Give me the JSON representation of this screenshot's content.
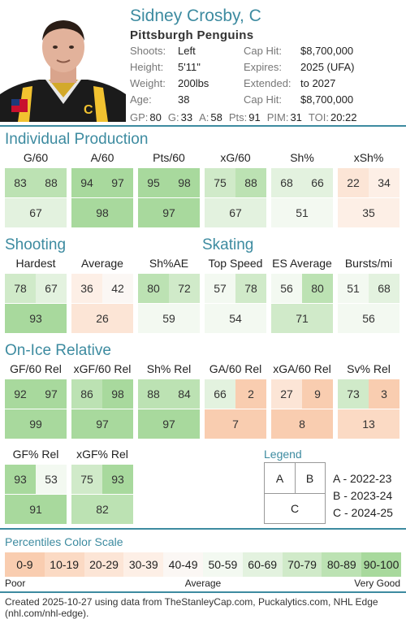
{
  "player": {
    "name": "Sidney Crosby, C",
    "team": "Pittsburgh Penguins"
  },
  "info_left": [
    {
      "label": "Shoots:",
      "value": "Left"
    },
    {
      "label": "Height:",
      "value": "5'11\""
    },
    {
      "label": "Weight:",
      "value": "200lbs"
    },
    {
      "label": "Age:",
      "value": "38"
    }
  ],
  "info_right": [
    {
      "label": "Cap Hit:",
      "value": "$8,700,000"
    },
    {
      "label": "Expires:",
      "value": "2025 (UFA)"
    },
    {
      "label": "Extended:",
      "value": "to 2027"
    },
    {
      "label": "Cap Hit:",
      "value": "$8,700,000"
    }
  ],
  "stat_line": [
    {
      "label": "GP:",
      "value": "80"
    },
    {
      "label": "G:",
      "value": "33"
    },
    {
      "label": "A:",
      "value": "58"
    },
    {
      "label": "Pts:",
      "value": "91"
    },
    {
      "label": "PIM:",
      "value": "31"
    },
    {
      "label": "TOI:",
      "value": "20:22"
    }
  ],
  "sections": {
    "individual": {
      "title": "Individual Production",
      "metrics": [
        {
          "label": "G/60",
          "a": 83,
          "b": 88,
          "c": 67
        },
        {
          "label": "A/60",
          "a": 94,
          "b": 97,
          "c": 98
        },
        {
          "label": "Pts/60",
          "a": 95,
          "b": 98,
          "c": 97
        },
        {
          "label": "xG/60",
          "a": 75,
          "b": 88,
          "c": 67
        },
        {
          "label": "Sh%",
          "a": 68,
          "b": 66,
          "c": 51
        },
        {
          "label": "xSh%",
          "a": 22,
          "b": 34,
          "c": 35
        }
      ]
    },
    "shooting": {
      "title": "Shooting",
      "metrics": [
        {
          "label": "Hardest",
          "a": 78,
          "b": 67,
          "c": 93
        },
        {
          "label": "Average",
          "a": 36,
          "b": 42,
          "c": 26
        },
        {
          "label": "Sh%AE",
          "a": 80,
          "b": 72,
          "c": 59
        }
      ]
    },
    "skating": {
      "title": "Skating",
      "metrics": [
        {
          "label": "Top Speed",
          "a": 57,
          "b": 78,
          "c": 54
        },
        {
          "label": "ES Average",
          "a": 56,
          "b": 80,
          "c": 71
        },
        {
          "label": "Bursts/mi",
          "a": 51,
          "b": 68,
          "c": 56
        }
      ]
    },
    "onice": {
      "title": "On-Ice Relative",
      "metrics": [
        {
          "label": "GF/60 Rel",
          "a": 92,
          "b": 97,
          "c": 99
        },
        {
          "label": "xGF/60 Rel",
          "a": 86,
          "b": 98,
          "c": 97
        },
        {
          "label": "Sh% Rel",
          "a": 88,
          "b": 84,
          "c": 97
        },
        {
          "label": "GA/60 Rel",
          "a": 66,
          "b": 2,
          "c": 7
        },
        {
          "label": "xGA/60 Rel",
          "a": 27,
          "b": 9,
          "c": 8
        },
        {
          "label": "Sv% Rel",
          "a": 73,
          "b": 3,
          "c": 13
        },
        {
          "label": "GF% Rel",
          "a": 93,
          "b": 53,
          "c": 91
        },
        {
          "label": "xGF% Rel",
          "a": 75,
          "b": 93,
          "c": 82
        }
      ]
    }
  },
  "legend": {
    "title": "Legend",
    "a": "A",
    "b": "B",
    "c": "C",
    "entries": [
      "A - 2022-23",
      "B - 2023-24",
      "C - 2024-25"
    ]
  },
  "scale": {
    "title": "Percentiles Color Scale",
    "bins": [
      "0-9",
      "10-19",
      "20-29",
      "30-39",
      "40-49",
      "50-59",
      "60-69",
      "70-79",
      "80-89",
      "90-100"
    ],
    "colors": [
      "#f9cdb0",
      "#fbdac4",
      "#fce5d6",
      "#fdefe6",
      "#fbf7f4",
      "#f3f9f1",
      "#e3f2df",
      "#d0eac9",
      "#bce2b3",
      "#a8d99d"
    ],
    "low": "Poor",
    "mid": "Average",
    "high": "Very Good"
  },
  "footer": "Created 2025-10-27 using data from TheStanleyCap.com, Puckalytics.com, NHL Edge (nhl.com/nhl-edge).",
  "colors": {
    "accent": "#3d8ba0"
  }
}
